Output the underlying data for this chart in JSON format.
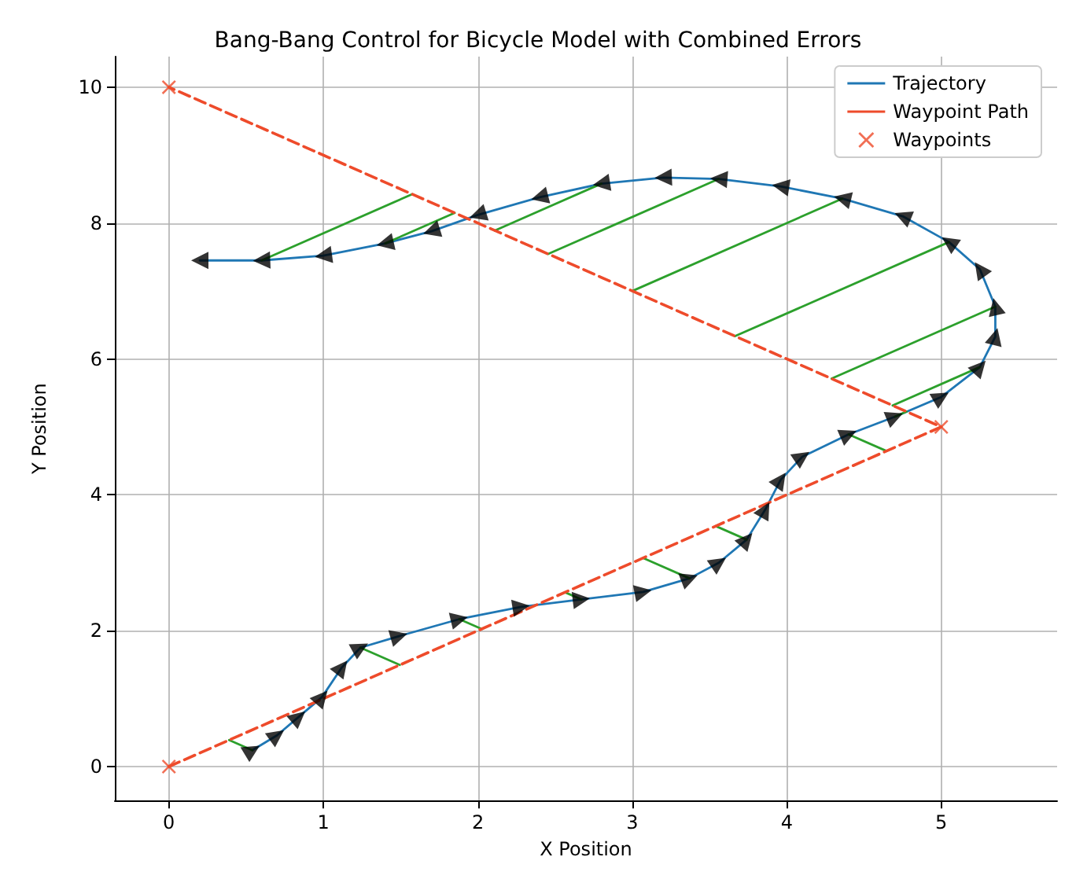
{
  "chart_data": {
    "type": "line",
    "title": "Bang-Bang Control for Bicycle Model with Combined Errors",
    "xlabel": "X Position",
    "ylabel": "Y Position",
    "xlim": [
      -0.35,
      5.75
    ],
    "ylim": [
      -0.5,
      10.45
    ],
    "xticks": [
      0,
      1,
      2,
      3,
      4,
      5
    ],
    "yticks": [
      0,
      2,
      4,
      6,
      8,
      10
    ],
    "grid": true,
    "legend": "top right",
    "series": [
      {
        "name": "Trajectory",
        "color": "#1f77b4",
        "line_style": "solid",
        "marker": "none",
        "x": [
          0.54,
          0.7,
          0.84,
          0.99,
          1.12,
          1.24,
          1.49,
          1.88,
          2.28,
          2.67,
          3.07,
          3.37,
          3.56,
          3.74,
          3.86,
          3.96,
          4.1,
          4.4,
          4.7,
          5.0,
          5.25,
          5.35,
          5.35,
          5.25,
          5.05,
          4.75,
          4.36,
          3.96,
          3.56,
          3.2,
          2.8,
          2.4,
          2.0,
          1.7,
          1.4,
          1.0,
          0.6,
          0.2
        ],
        "values": [
          0.24,
          0.46,
          0.73,
          1.02,
          1.46,
          1.75,
          1.92,
          2.17,
          2.35,
          2.46,
          2.57,
          2.77,
          3.0,
          3.34,
          3.78,
          4.22,
          4.56,
          4.89,
          5.15,
          5.44,
          5.88,
          6.33,
          6.77,
          7.32,
          7.72,
          8.1,
          8.36,
          8.54,
          8.65,
          8.67,
          8.58,
          8.38,
          8.12,
          7.88,
          7.7,
          7.52,
          7.45,
          7.45
        ]
      },
      {
        "type": "scatter",
        "color": "#000000",
        "marker": "triangle",
        "x": [
          0.54,
          0.7,
          0.84,
          0.99,
          1.12,
          1.24,
          1.49,
          1.88,
          2.28,
          2.67,
          3.07,
          3.37,
          3.56,
          3.74,
          3.86,
          3.96,
          4.1,
          4.4,
          4.7,
          5.0,
          5.25,
          5.35,
          5.35,
          5.25,
          5.05,
          4.75,
          4.36,
          3.96,
          3.56,
          3.2,
          2.8,
          2.4,
          2.0,
          1.7,
          1.4,
          1.0,
          0.6,
          0.2
        ],
        "values": [
          0.24,
          0.46,
          0.73,
          1.02,
          1.46,
          1.75,
          1.92,
          2.17,
          2.35,
          2.46,
          2.57,
          2.77,
          3.0,
          3.34,
          3.78,
          4.22,
          4.56,
          4.89,
          5.15,
          5.44,
          5.88,
          6.33,
          6.77,
          7.32,
          7.72,
          8.1,
          8.36,
          8.54,
          8.65,
          8.67,
          8.58,
          8.38,
          8.12,
          7.88,
          7.7,
          7.52,
          7.45,
          7.45
        ]
      },
      {
        "color": "#2ca02c",
        "line_style": "solid",
        "marker": "none",
        "x": [
          0.54,
          0.39,
          null,
          1.24,
          1.495,
          null,
          1.88,
          2.025,
          null,
          2.67,
          2.565,
          null,
          3.37,
          3.07,
          null,
          3.74,
          3.54,
          null,
          4.4,
          4.645,
          null,
          4.7,
          4.775,
          null,
          5.25,
          4.685,
          null,
          5.35,
          4.29,
          null,
          5.05,
          3.665,
          null,
          4.36,
          3.0,
          null,
          3.56,
          2.455,
          null,
          2.8,
          2.11,
          null,
          1.4,
          1.85,
          null,
          0.6,
          1.575
        ],
        "values": [
          0.24,
          0.39,
          null,
          1.75,
          1.495,
          null,
          2.17,
          2.025,
          null,
          2.46,
          2.565,
          null,
          2.77,
          3.07,
          null,
          3.34,
          3.54,
          null,
          4.89,
          4.645,
          null,
          5.15,
          5.225,
          null,
          5.88,
          5.315,
          null,
          6.77,
          5.71,
          null,
          7.72,
          6.335,
          null,
          8.36,
          7.0,
          null,
          8.65,
          7.545,
          null,
          8.58,
          7.89,
          null,
          7.7,
          8.15,
          null,
          7.45,
          8.425
        ]
      },
      {
        "name": "Waypoint Path",
        "color": "#ee4b2b",
        "line_style": "dashed",
        "marker": "none",
        "x": [
          0,
          5,
          0
        ],
        "values": [
          0,
          5,
          10
        ]
      },
      {
        "name": "Waypoints",
        "type": "scatter",
        "color": "#ee4b2b",
        "marker": "cross",
        "x": [
          0,
          5,
          0
        ],
        "values": [
          0,
          5,
          10
        ]
      }
    ]
  }
}
